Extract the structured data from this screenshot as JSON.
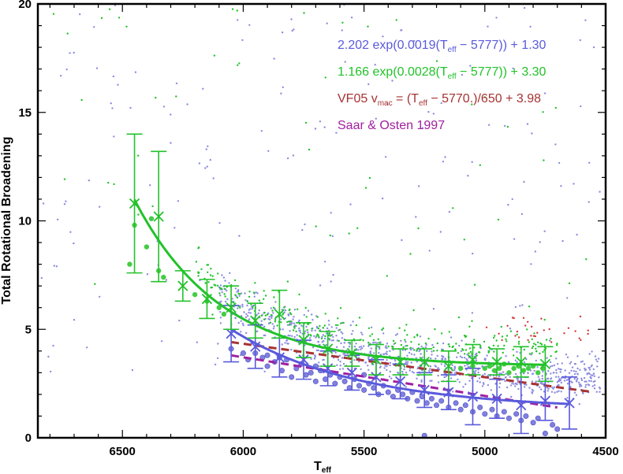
{
  "chart_data": {
    "type": "scatter",
    "title": "",
    "xlabel_main": "T",
    "xlabel_sub": "eff",
    "ylabel": "Total Rotational Broadening",
    "xlim": [
      6850,
      4500
    ],
    "ylim": [
      0,
      20
    ],
    "x_ticks": [
      6500,
      6000,
      5500,
      5000,
      4500
    ],
    "y_ticks": [
      0,
      5,
      10,
      15,
      20
    ],
    "x_reversed": true,
    "grid": false,
    "legend_position": "top-right",
    "colors": {
      "blue": "#5a5adc",
      "green": "#22c22a",
      "red": "#a83232",
      "magenta": "#a020a0"
    },
    "legend": [
      {
        "color_key": "blue",
        "parts": [
          "2.202 exp(0.0019(T",
          "eff",
          " − 5777)) + 1.30"
        ]
      },
      {
        "color_key": "green",
        "parts": [
          "1.166 exp(0.0028(T",
          "eff",
          " − 5777)) + 3.30"
        ]
      },
      {
        "color_key": "red",
        "parts": [
          "VF05 v",
          "mac",
          " = (T",
          "eff",
          " − 5770.)/650 + 3.98"
        ]
      },
      {
        "color_key": "magenta",
        "parts": [
          "Saar & Osten 1997"
        ]
      }
    ],
    "series": [
      {
        "name": "2.202 exp(0.0019(Teff − 5777)) + 1.30",
        "color_key": "blue",
        "binned_x": [
          6050,
          5950,
          5850,
          5750,
          5650,
          5550,
          5450,
          5350,
          5250,
          5150,
          5050,
          4950,
          4850,
          4750,
          4650
        ],
        "binned_y": [
          4.8,
          4.2,
          3.7,
          3.6,
          3.2,
          3.0,
          2.8,
          2.6,
          2.2,
          2.1,
          1.9,
          1.8,
          1.5,
          1.7,
          1.6
        ],
        "err": [
          1.3,
          1.0,
          0.9,
          0.9,
          0.8,
          0.8,
          0.8,
          0.8,
          0.8,
          0.8,
          1.3,
          0.9,
          1.3,
          0.9,
          1.2
        ]
      },
      {
        "name": "1.166 exp(0.0028(Teff − 5777)) + 3.30",
        "color_key": "green",
        "binned_x": [
          6450,
          6350,
          6250,
          6150,
          6050,
          5950,
          5850,
          5750,
          5650,
          5550,
          5450,
          5350,
          5250,
          5150,
          5050,
          4950,
          4850,
          4750
        ],
        "binned_y": [
          10.8,
          10.2,
          7.0,
          6.4,
          6.0,
          5.4,
          5.7,
          4.5,
          4.1,
          3.9,
          3.6,
          3.5,
          3.5,
          3.3,
          3.6,
          3.5,
          3.5,
          3.4
        ],
        "err": [
          3.2,
          3.0,
          0.7,
          0.9,
          1.0,
          0.8,
          1.1,
          0.8,
          0.8,
          0.6,
          0.7,
          0.6,
          0.6,
          0.7,
          0.7,
          0.6,
          0.7,
          0.8
        ]
      },
      {
        "name": "VF05 vmac = (Teff − 5770.)/650 + 3.98",
        "color_key": "red"
      },
      {
        "name": "Saar & Osten 1997",
        "color_key": "magenta"
      }
    ],
    "filled_points_blue": [
      [
        6050,
        4.1
      ],
      [
        6000,
        3.9
      ],
      [
        5980,
        3.6
      ],
      [
        5950,
        3.9
      ],
      [
        5920,
        3.7
      ],
      [
        5900,
        3.3
      ],
      [
        5870,
        3.5
      ],
      [
        5840,
        3.1
      ],
      [
        5820,
        3.6
      ],
      [
        5800,
        2.8
      ],
      [
        5780,
        3.2
      ],
      [
        5760,
        3.4
      ],
      [
        5740,
        2.9
      ],
      [
        5720,
        3.0
      ],
      [
        5700,
        2.6
      ],
      [
        5680,
        3.1
      ],
      [
        5660,
        2.7
      ],
      [
        5640,
        2.9
      ],
      [
        5620,
        2.5
      ],
      [
        5600,
        2.8
      ],
      [
        5580,
        2.6
      ],
      [
        5560,
        2.3
      ],
      [
        5540,
        2.7
      ],
      [
        5520,
        2.4
      ],
      [
        5500,
        2.2
      ],
      [
        5480,
        2.5
      ],
      [
        5460,
        2.3
      ],
      [
        5440,
        2.0
      ],
      [
        5420,
        2.4
      ],
      [
        5400,
        2.1
      ],
      [
        5380,
        1.9
      ],
      [
        5360,
        2.2
      ],
      [
        5340,
        2.0
      ],
      [
        5320,
        1.8
      ],
      [
        5300,
        2.1
      ],
      [
        5280,
        1.7
      ],
      [
        5260,
        1.9
      ],
      [
        5240,
        1.6
      ],
      [
        5220,
        1.8
      ],
      [
        5200,
        1.5
      ],
      [
        5180,
        1.7
      ],
      [
        5150,
        1.4
      ],
      [
        5120,
        1.6
      ],
      [
        5100,
        1.3
      ],
      [
        5080,
        1.5
      ],
      [
        5050,
        1.2
      ],
      [
        5020,
        1.4
      ],
      [
        5000,
        1.1
      ],
      [
        4970,
        1.3
      ],
      [
        4950,
        1.0
      ],
      [
        4920,
        1.2
      ],
      [
        4900,
        0.9
      ],
      [
        4870,
        1.1
      ],
      [
        4850,
        0.8
      ],
      [
        4830,
        1.0
      ],
      [
        4800,
        0.7
      ],
      [
        4780,
        0.9
      ],
      [
        4750,
        0.2
      ],
      [
        4720,
        0.6
      ],
      [
        4700,
        0.4
      ],
      [
        5250,
        0.1
      ],
      [
        5900,
        3.8
      ],
      [
        5850,
        3.7
      ],
      [
        5700,
        3.3
      ],
      [
        5500,
        2.9
      ]
    ],
    "filled_points_green": [
      [
        6470,
        8.0
      ],
      [
        6450,
        9.8
      ],
      [
        6400,
        8.8
      ],
      [
        6380,
        10.1
      ],
      [
        6350,
        7.7
      ],
      [
        6330,
        7.4
      ],
      [
        6200,
        6.6
      ],
      [
        6150,
        6.3
      ],
      [
        6100,
        6.0
      ],
      [
        6080,
        5.7
      ],
      [
        5000,
        3.2
      ],
      [
        4980,
        3.3
      ],
      [
        4960,
        3.1
      ],
      [
        4940,
        3.2
      ],
      [
        4920,
        3.4
      ],
      [
        4900,
        3.0
      ],
      [
        4880,
        3.2
      ],
      [
        4860,
        3.3
      ],
      [
        4840,
        3.1
      ],
      [
        4820,
        3.2
      ],
      [
        4800,
        3.3
      ],
      [
        4780,
        3.0
      ],
      [
        4760,
        3.2
      ],
      [
        5050,
        3.3
      ],
      [
        5100,
        3.2
      ]
    ]
  }
}
